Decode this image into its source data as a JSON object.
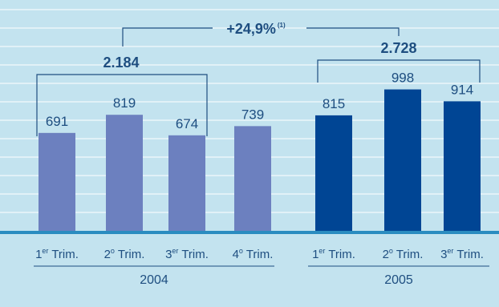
{
  "chart_data": {
    "type": "bar",
    "title": "",
    "xlabel": "",
    "ylabel": "",
    "grid": true,
    "ylim": [
      0,
      1150
    ],
    "categories": [
      {
        "sup": "1",
        "supx": "er",
        "base": " Trim.",
        "year": "2004"
      },
      {
        "sup": "2",
        "supx": "o",
        "base": " Trim.",
        "year": "2004"
      },
      {
        "sup": "3",
        "supx": "er",
        "base": " Trim.",
        "year": "2004"
      },
      {
        "sup": "4",
        "supx": "o",
        "base": " Trim.",
        "year": "2004"
      },
      {
        "sup": "1",
        "supx": "er",
        "base": " Trim.",
        "year": "2005"
      },
      {
        "sup": "2",
        "supx": "o",
        "base": " Trim.",
        "year": "2005"
      },
      {
        "sup": "3",
        "supx": "er",
        "base": " Trim.",
        "year": "2005"
      }
    ],
    "series": [
      {
        "values": [
          691,
          819,
          674,
          739,
          815,
          998,
          914
        ]
      }
    ],
    "value_labels": [
      "691",
      "819",
      "674",
      "739",
      "815",
      "998",
      "914"
    ],
    "groups": [
      {
        "year": "2004",
        "total": "2.184",
        "color": "#6c80bf"
      },
      {
        "year": "2005",
        "total": "2.728",
        "color": "#004594"
      }
    ],
    "growth_label": "+24,9%",
    "growth_note": "(1)",
    "colors": {
      "background": "#c3e3ef",
      "grid": "#ffffff",
      "baseline": "#2a8cc0",
      "text": "#1e4e80",
      "bar_2004": "#6c80bf",
      "bar_2005": "#004594"
    }
  }
}
